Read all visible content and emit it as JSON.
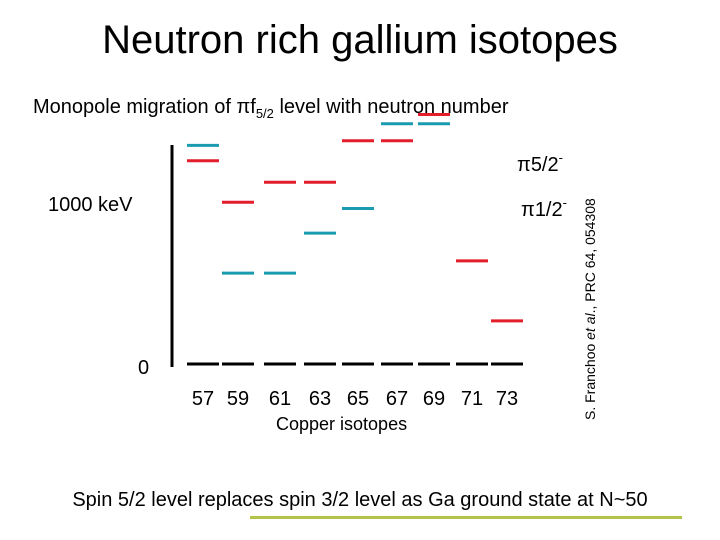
{
  "title": "Neutron rich gallium isotopes",
  "subtitle": {
    "prefix": "Monopole migration of ",
    "symbol": "π",
    "orbital": "f",
    "subscript": "5/2",
    "suffix": " level with neutron number"
  },
  "colors": {
    "red": "#e11e2a",
    "blue": "#1a9bb0",
    "black": "#000000",
    "footer_line": "#b3c34a"
  },
  "chart_data": {
    "type": "level-scheme",
    "y_tick_labels": [
      "1000 keV",
      "0"
    ],
    "ylim": [
      0,
      1800
    ],
    "x_label": "Copper isotopes",
    "categories": [
      "57",
      "59",
      "61",
      "63",
      "65",
      "67",
      "69",
      "71",
      "73"
    ],
    "ground_state": [
      0,
      0,
      0,
      0,
      0,
      0,
      0,
      0,
      0
    ],
    "series": [
      {
        "name": "π5/2-",
        "symbol": "π",
        "base": "5/2",
        "sup": "-",
        "color": "#e11e2a",
        "values": [
          1320,
          1050,
          1180,
          1180,
          1450,
          1450,
          1620,
          670,
          280
        ]
      },
      {
        "name": "π1/2-",
        "symbol": "π",
        "base": "1/2",
        "sup": "-",
        "color": "#1a9bb0",
        "values": [
          1420,
          590,
          590,
          850,
          1010,
          1560,
          1560,
          null,
          null
        ]
      }
    ]
  },
  "citation": {
    "prefix": "S. Franchoo ",
    "italic": "et al",
    "suffix": "., PRC 64, 054308"
  },
  "footer": "Spin 5/2 level replaces spin 3/2 level as Ga ground state at N~50"
}
